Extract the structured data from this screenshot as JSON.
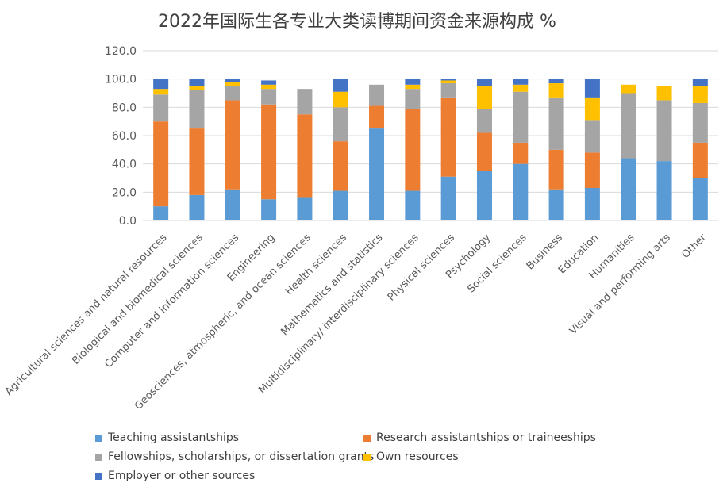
{
  "chart_data": {
    "type": "bar",
    "stacked": true,
    "title": "2022年国际生各专业大类读博期间资金来源构成 %",
    "xlabel": "",
    "ylabel": "",
    "ylim": [
      0,
      120
    ],
    "yticks": [
      "0.0",
      "20.0",
      "40.0",
      "60.0",
      "80.0",
      "100.0",
      "120.0"
    ],
    "grid": true,
    "legend_position": "bottom",
    "categories": [
      "Agricultural sciences and natural resources",
      "Biological and biomedical sciences",
      "Computer and information sciences",
      "Engineering",
      "Geosciences, atmospheric, and ocean sciences",
      "Health sciences",
      "Mathematics and statistics",
      "Multidisciplinary/ interdisciplinary sciences",
      "Physical sciences",
      "Psychology",
      "Social sciences",
      "Business",
      "Education",
      "Humanities",
      "Visual and performing arts",
      "Other"
    ],
    "series": [
      {
        "name": "Teaching assistantships",
        "color": "#5B9BD5",
        "values": [
          10,
          18,
          22,
          15,
          16,
          21,
          65,
          21,
          31,
          35,
          40,
          22,
          23,
          44,
          42,
          30
        ]
      },
      {
        "name": "Research assistantships or traineeships",
        "color": "#ED7D31",
        "values": [
          60,
          47,
          63,
          67,
          59,
          35,
          16,
          58,
          56,
          27,
          15,
          28,
          25,
          0,
          0,
          25
        ]
      },
      {
        "name": "Fellowships, scholarships, or dissertation grants",
        "color": "#A5A5A5",
        "values": [
          19,
          27,
          10,
          11,
          18,
          24,
          15,
          14,
          10,
          17,
          36,
          37,
          23,
          46,
          43,
          28
        ]
      },
      {
        "name": "Own resources",
        "color": "#FFC000",
        "values": [
          4,
          3,
          3,
          3,
          0,
          11,
          0,
          3,
          2,
          16,
          5,
          10,
          16,
          6,
          10,
          12
        ]
      },
      {
        "name": "Employer or other sources",
        "color": "#4472C4",
        "values": [
          7,
          5,
          2,
          3,
          0,
          9,
          0,
          4,
          1,
          5,
          4,
          3,
          13,
          0,
          0,
          5
        ]
      }
    ]
  }
}
